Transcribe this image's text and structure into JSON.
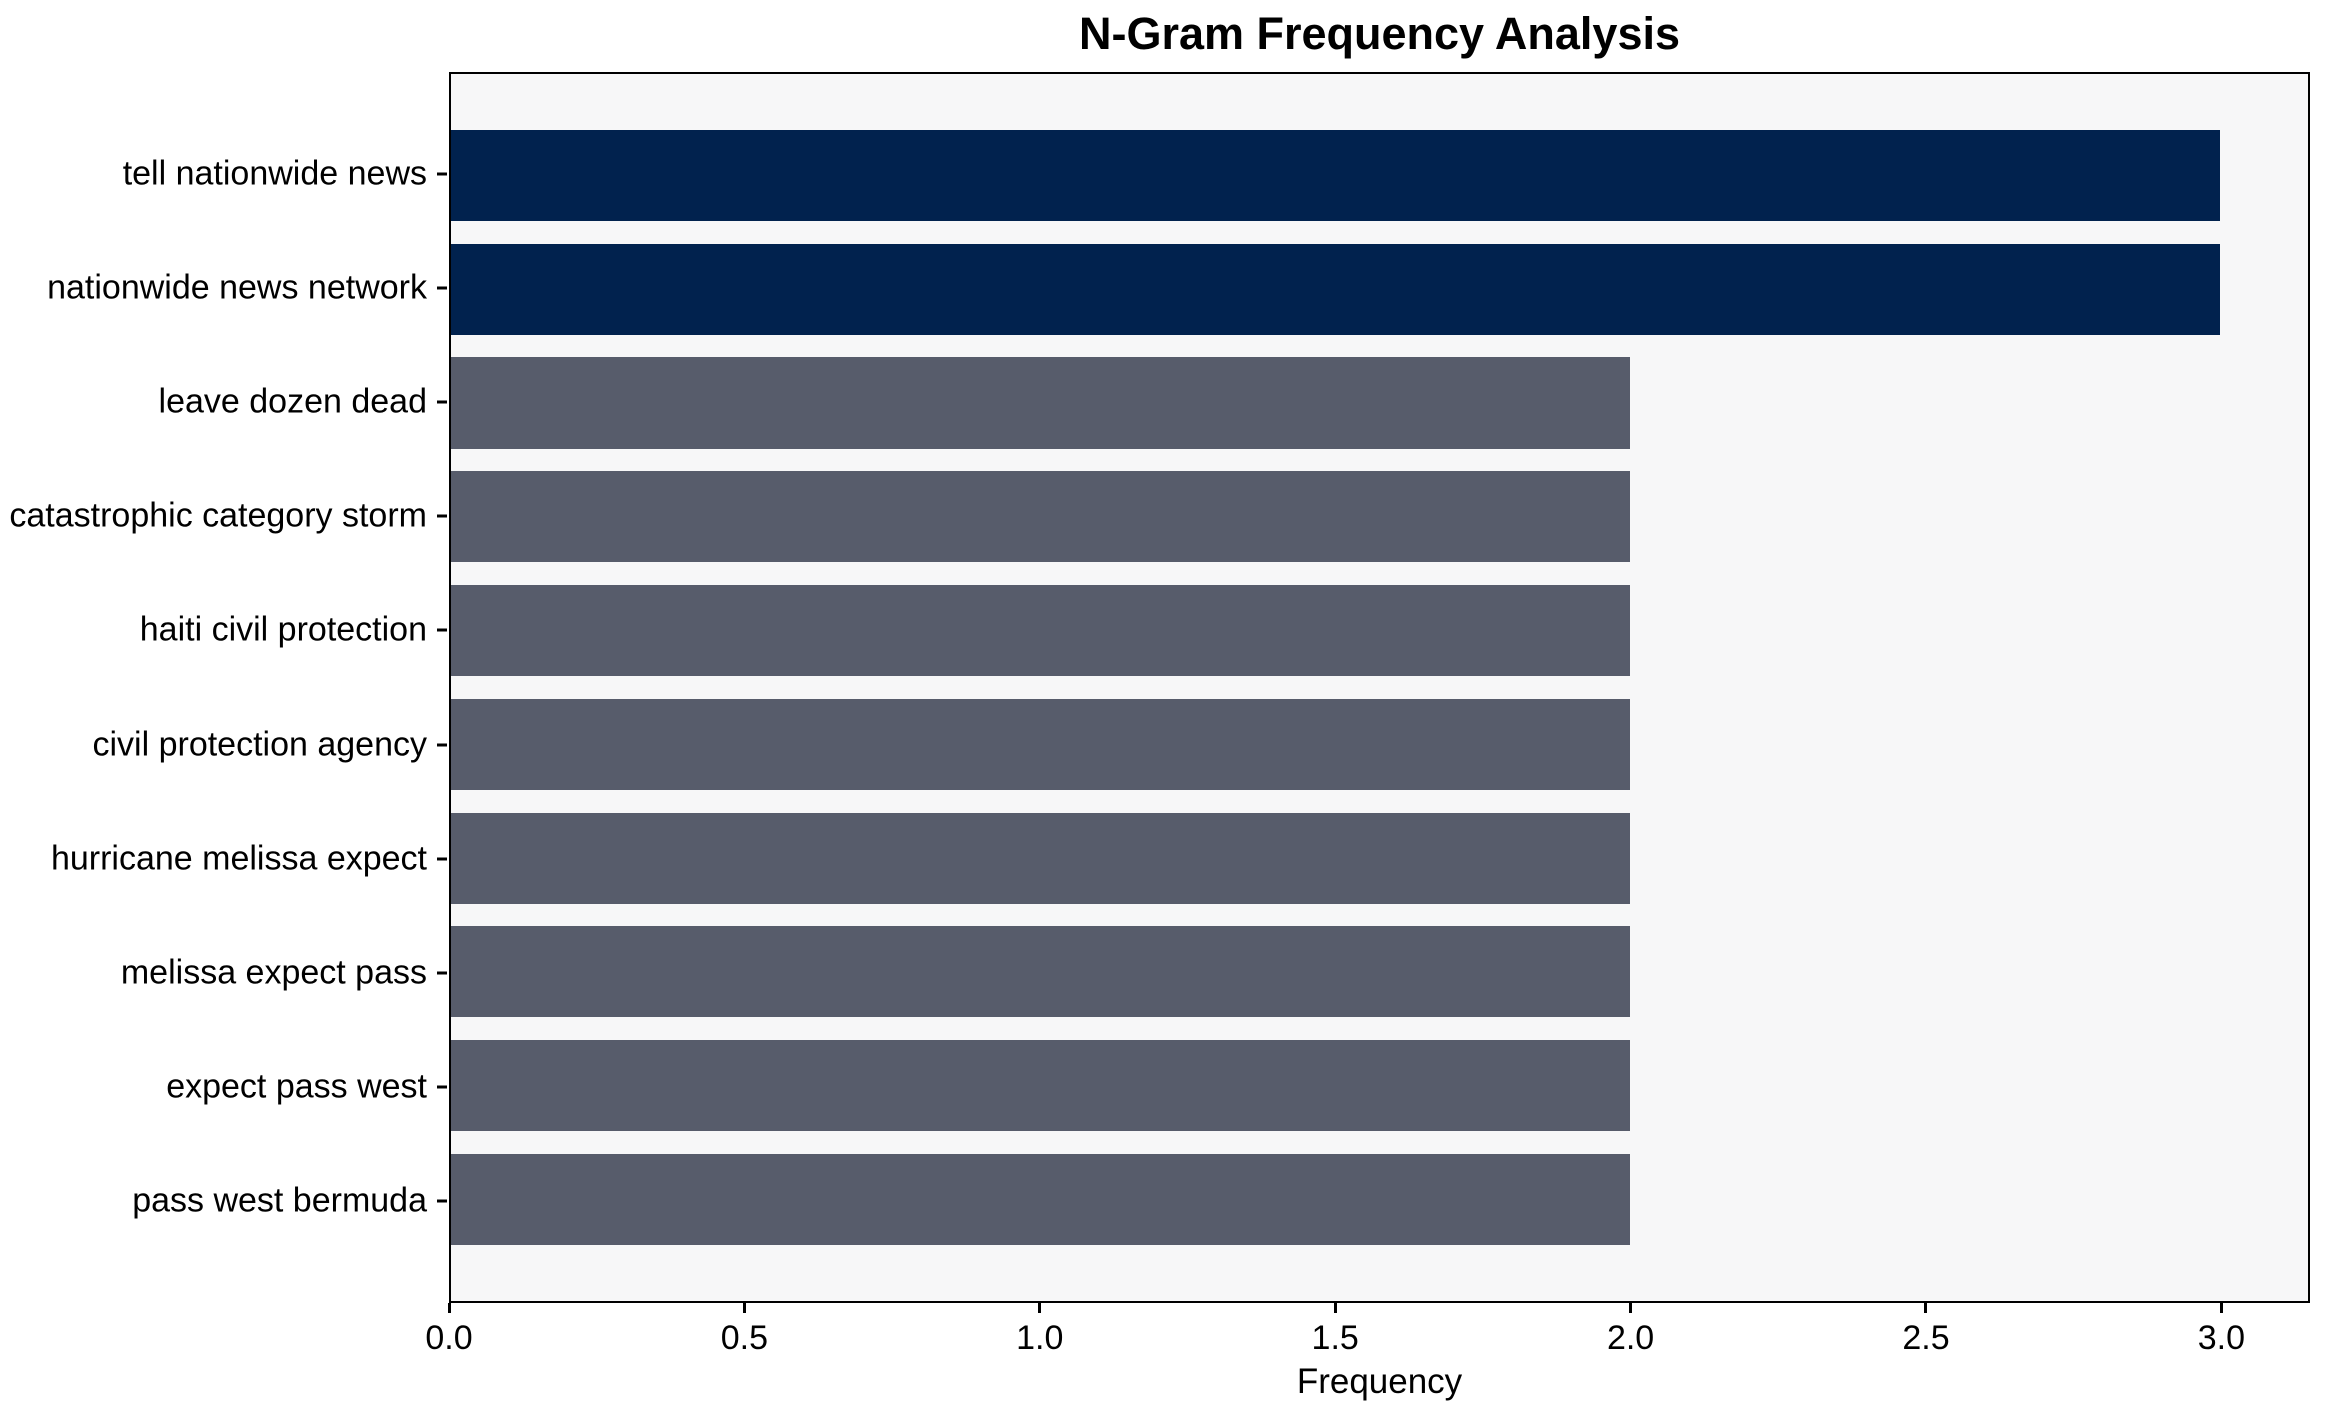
{
  "chart_data": {
    "type": "bar",
    "orientation": "horizontal",
    "title": "N-Gram Frequency Analysis",
    "xlabel": "Frequency",
    "ylabel": "",
    "categories": [
      "tell nationwide news",
      "nationwide news network",
      "leave dozen dead",
      "catastrophic category storm",
      "haiti civil protection",
      "civil protection agency",
      "hurricane melissa expect",
      "melissa expect pass",
      "expect pass west",
      "pass west bermuda"
    ],
    "values": [
      3,
      3,
      2,
      2,
      2,
      2,
      2,
      2,
      2,
      2
    ],
    "bar_colors": [
      "#01224e",
      "#01224e",
      "#575c6b",
      "#575c6b",
      "#575c6b",
      "#575c6b",
      "#575c6b",
      "#575c6b",
      "#575c6b",
      "#575c6b"
    ],
    "x_ticks": [
      "0.0",
      "0.5",
      "1.0",
      "1.5",
      "2.0",
      "2.5",
      "3.0"
    ],
    "x_tick_values": [
      0.0,
      0.5,
      1.0,
      1.5,
      2.0,
      2.5,
      3.0
    ],
    "xlim": [
      0,
      3.15
    ],
    "grid": false,
    "legend": null,
    "colors": {
      "highlight_bar": "#01224e",
      "default_bar": "#575c6b",
      "plot_background": "#f7f7f8",
      "figure_background": "#ffffff",
      "axis_line": "#000000",
      "text": "#000000"
    }
  }
}
